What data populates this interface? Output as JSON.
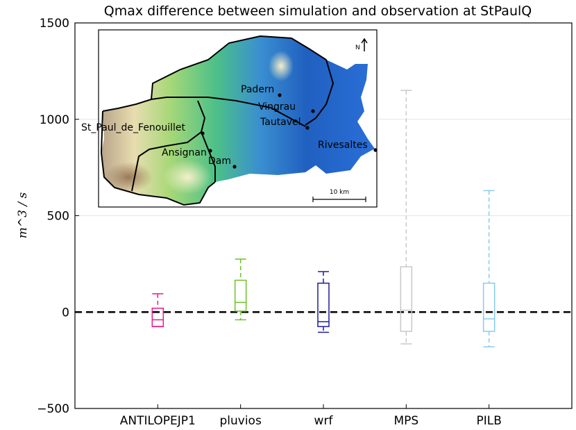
{
  "chart_data": {
    "type": "box",
    "title": "Qmax difference between simulation and observation at StPaulQ",
    "ylabel": "m^3 / s",
    "ylim": [
      -500,
      1500
    ],
    "yticks": [
      -500,
      0,
      500,
      1000,
      1500
    ],
    "grid": true,
    "reference_line": {
      "y": 0,
      "style": "dashed",
      "color": "#000000"
    },
    "categories": [
      "ANTILOPEJP1",
      "pluvios",
      "wrf",
      "MPS",
      "PILB"
    ],
    "series": [
      {
        "category": "ANTILOPEJP1",
        "color": "#e8198b",
        "whisker_low": -75,
        "q1": -75,
        "median": -40,
        "q3": 20,
        "whisker_high": 95,
        "cap_low": -75,
        "cap_high": 95
      },
      {
        "category": "pluvios",
        "color": "#6cc02a",
        "whisker_low": -40,
        "q1": 5,
        "median": 50,
        "q3": 165,
        "whisker_high": 275,
        "cap_low": -40,
        "cap_high": 275
      },
      {
        "category": "wrf",
        "color": "#1c1c9c",
        "whisker_low": -105,
        "q1": -75,
        "median": -50,
        "q3": 150,
        "whisker_high": 210,
        "cap_low": -105,
        "cap_high": 210
      },
      {
        "category": "MPS",
        "color": "#c8c8c8",
        "whisker_low": -165,
        "q1": -100,
        "median": 10,
        "q3": 235,
        "whisker_high": 1150,
        "cap_low": -165,
        "cap_high": 1150
      },
      {
        "category": "PILB",
        "color": "#87cbf0",
        "whisker_low": -180,
        "q1": -100,
        "median": -35,
        "q3": 150,
        "whisker_high": 630,
        "cap_low": -180,
        "cap_high": 630
      }
    ],
    "inset_map": {
      "north_label": "N",
      "scale_label": "10 km",
      "places": [
        "Padern",
        "Vingrau",
        "Tautavel",
        "St_Paul_de_Fenouillet",
        "Rivesaltes",
        "Ansignan",
        "Dam"
      ]
    }
  }
}
